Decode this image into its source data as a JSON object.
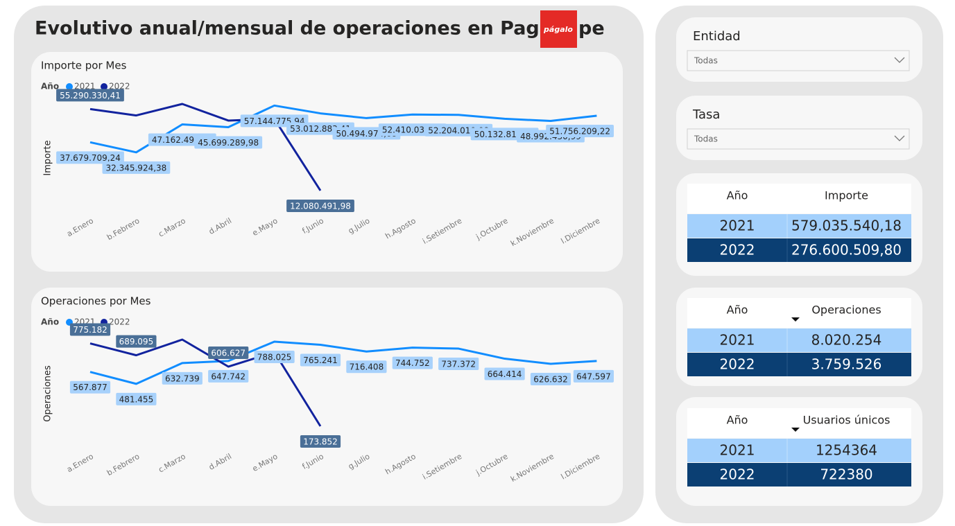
{
  "header": {
    "title": "Evolutivo anual/mensual de operaciones en Pagalo.pe",
    "logo": "págalo"
  },
  "chart_data": [
    {
      "type": "line",
      "title": "Importe por Mes",
      "legend_title": "Año",
      "y_label": "Importe",
      "categories": [
        "a.Enero",
        "b.Febrero",
        "c.Marzo",
        "d.Abril",
        "e.Mayo",
        "f.Junio",
        "g.Julio",
        "h.Agosto",
        "i.Setiembre",
        "j.Octubre",
        "k.Noviembre",
        "l.Diciembre"
      ],
      "series": [
        {
          "name": "2021",
          "color": "#118dff",
          "values": [
            37679709.24,
            32345924.38,
            47162490.0,
            45699289.98,
            57144775.94,
            53012883.41,
            50494974.08,
            52410031.05,
            52204010.08,
            50132811.81,
            48992430.99,
            51756209.22
          ],
          "value_labels": [
            "37.679.709,24",
            "32.345.924,38",
            "47.162.490,00",
            "45.699.289,98",
            "57.144.775,94",
            "53.012.883,41",
            "50.494.974,08",
            "52.410.031,05",
            "52.204.010,08",
            "50.132.811,81",
            "48.992.430,99",
            "51.756.209,22"
          ]
        },
        {
          "name": "2022",
          "color": "#12239e",
          "values": [
            55290330.41,
            51900000,
            58000000,
            49200000,
            50100000,
            12080491.98,
            null,
            null,
            null,
            null,
            null,
            null
          ],
          "value_labels": [
            "55.290.330,41",
            null,
            null,
            null,
            null,
            "12.080.491,98",
            null,
            null,
            null,
            null,
            null,
            null
          ]
        }
      ]
    },
    {
      "type": "line",
      "title": "Operaciones por Mes",
      "legend_title": "Año",
      "y_label": "Operaciones",
      "categories": [
        "a.Enero",
        "b.Febrero",
        "c.Marzo",
        "d.Abril",
        "e.Mayo",
        "f.Junio",
        "g.Julio",
        "h.Agosto",
        "i.Setiembre",
        "j.Octubre",
        "k.Noviembre",
        "l.Diciembre"
      ],
      "series": [
        {
          "name": "2021",
          "color": "#118dff",
          "values": [
            567877,
            481455,
            632739,
            647742,
            788025,
            765241,
            716408,
            744752,
            737372,
            664414,
            626632,
            647597
          ],
          "value_labels": [
            "567.877",
            "481.455",
            "632.739",
            "647.742",
            "788.025",
            "765.241",
            "716.408",
            "744.752",
            "737.372",
            "664.414",
            "626.632",
            "647.597"
          ]
        },
        {
          "name": "2022",
          "color": "#12239e",
          "values": [
            775182,
            689095,
            803000,
            606627,
            711770,
            173852,
            null,
            null,
            null,
            null,
            null,
            null
          ],
          "value_labels": [
            "775.182",
            "689.095",
            null,
            "606.627",
            null,
            "173.852",
            null,
            null,
            null,
            null,
            null,
            null
          ]
        }
      ]
    }
  ],
  "slicers": [
    {
      "label": "Entidad",
      "value": "Todas"
    },
    {
      "label": "Tasa",
      "value": "Todas"
    }
  ],
  "tables": [
    {
      "columns": [
        "Año",
        "Importe"
      ],
      "rows": [
        [
          "2021",
          "579.035.540,18"
        ],
        [
          "2022",
          "276.600.509,80"
        ]
      ],
      "sort_indicator": false
    },
    {
      "columns": [
        "Año",
        "Operaciones"
      ],
      "rows": [
        [
          "2021",
          "8.020.254"
        ],
        [
          "2022",
          "3.759.526"
        ]
      ],
      "sort_indicator": true
    },
    {
      "columns": [
        "Año",
        "Usuarios únicos"
      ],
      "rows": [
        [
          "2021",
          "1254364"
        ],
        [
          "2022",
          "722380"
        ]
      ],
      "sort_indicator": true
    }
  ]
}
